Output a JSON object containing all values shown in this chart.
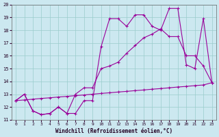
{
  "xlabel": "Windchill (Refroidissement éolien,°C)",
  "bg_color": "#cce8f0",
  "line_color": "#990099",
  "grid_color": "#99cccc",
  "xlim": [
    -0.5,
    23.5
  ],
  "ylim": [
    11,
    20
  ],
  "xticks": [
    0,
    1,
    2,
    3,
    4,
    5,
    6,
    7,
    8,
    9,
    10,
    11,
    12,
    13,
    14,
    15,
    16,
    17,
    18,
    19,
    20,
    21,
    22,
    23
  ],
  "yticks": [
    11,
    12,
    13,
    14,
    15,
    16,
    17,
    18,
    19,
    20
  ],
  "line1_x": [
    0,
    1,
    2,
    3,
    4,
    5,
    6,
    7,
    8,
    9,
    10,
    11,
    12,
    13,
    14,
    15,
    16,
    17,
    18,
    19,
    20,
    21,
    22,
    23
  ],
  "line1_y": [
    12.5,
    13.0,
    11.7,
    11.4,
    11.5,
    12.0,
    11.5,
    11.5,
    12.5,
    12.5,
    16.7,
    18.9,
    18.9,
    18.3,
    19.2,
    19.2,
    18.3,
    18.0,
    19.7,
    19.7,
    15.3,
    15.0,
    18.9,
    13.9
  ],
  "line2_x": [
    0,
    1,
    2,
    3,
    4,
    5,
    6,
    7,
    8,
    9,
    10,
    11,
    12,
    13,
    14,
    15,
    16,
    17,
    18,
    19,
    20,
    21,
    22,
    23
  ],
  "line2_y": [
    12.5,
    13.0,
    11.7,
    11.4,
    11.5,
    12.0,
    11.5,
    13.0,
    13.5,
    13.5,
    15.0,
    15.2,
    15.5,
    16.2,
    16.8,
    17.4,
    17.7,
    18.1,
    17.5,
    17.5,
    16.0,
    16.0,
    15.2,
    13.9
  ],
  "line3_x": [
    0,
    1,
    2,
    3,
    4,
    5,
    6,
    7,
    8,
    9,
    10,
    11,
    12,
    13,
    14,
    15,
    16,
    17,
    18,
    19,
    20,
    21,
    22,
    23
  ],
  "line3_y": [
    12.5,
    12.55,
    12.61,
    12.67,
    12.72,
    12.78,
    12.83,
    12.89,
    12.94,
    13.0,
    13.06,
    13.11,
    13.17,
    13.22,
    13.28,
    13.33,
    13.39,
    13.44,
    13.5,
    13.56,
    13.61,
    13.67,
    13.72,
    13.9
  ]
}
